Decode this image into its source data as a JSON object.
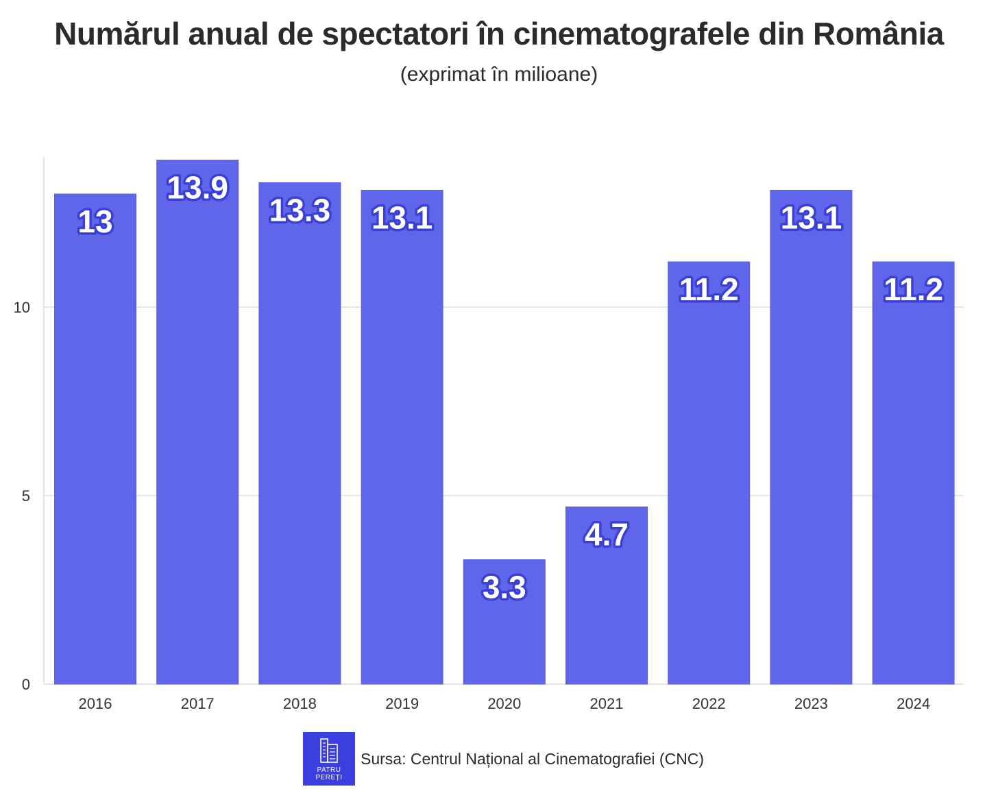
{
  "chart_data": {
    "type": "bar",
    "title": "Numărul anual de spectatori în cinematografele din România",
    "subtitle": "(exprimat în milioane)",
    "categories": [
      "2016",
      "2017",
      "2018",
      "2019",
      "2020",
      "2021",
      "2022",
      "2023",
      "2024"
    ],
    "values": [
      13,
      13.9,
      13.3,
      13.1,
      3.3,
      4.7,
      11.2,
      13.1,
      11.2
    ],
    "value_labels": [
      "13",
      "13.9",
      "13.3",
      "13.1",
      "3.3",
      "4.7",
      "11.2",
      "13.1",
      "11.2"
    ],
    "yticks": [
      0,
      5,
      10
    ],
    "ylim": [
      0,
      14
    ],
    "xlabel": "",
    "ylabel": "",
    "grid": true,
    "bar_color": "#6066e9",
    "label_outline_color": "#3a3fd6"
  },
  "footer": {
    "logo_line1": "PATRU",
    "logo_line2": "PEREȚI",
    "logo_color": "#3b3fe0",
    "source": "Sursa: Centrul Național al Cinematografiei (CNC)"
  }
}
